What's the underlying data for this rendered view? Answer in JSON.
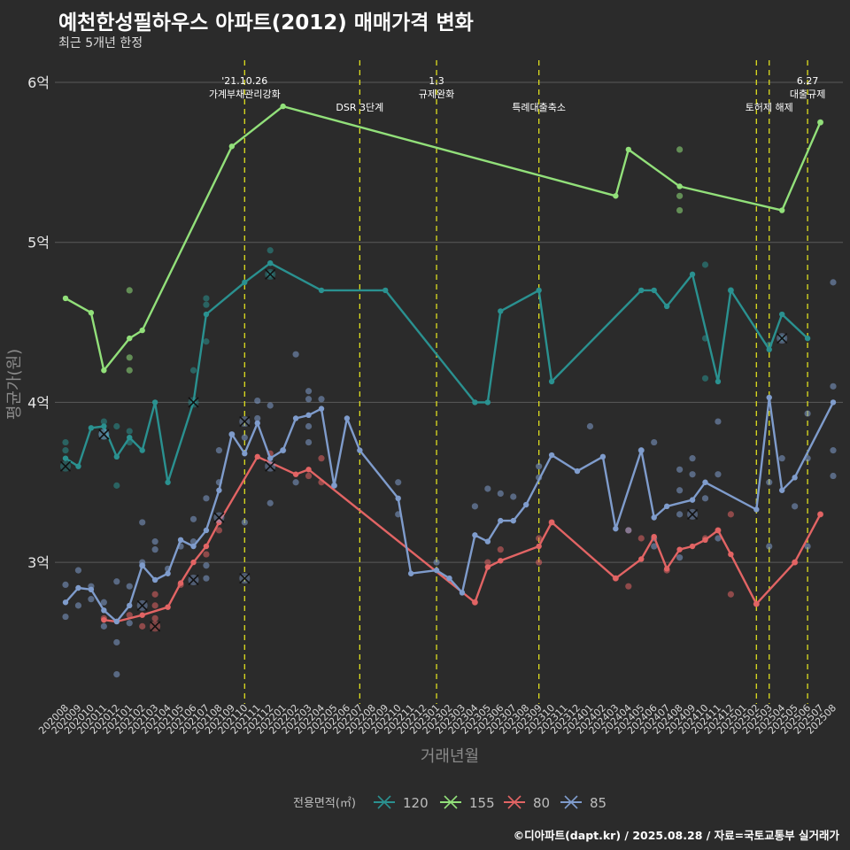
{
  "title": "예천한성필하우스 아파트(2012) 매매가격 변화",
  "subtitle": "최근 5개년 한정",
  "caption": "©디아파트(dapt.kr) / 2025.08.28 / 자료=국토교통부 실거래가",
  "chart_data": {
    "type": "line",
    "xlabel": "거래년월",
    "ylabel": "평균가(원)",
    "x": [
      "202008",
      "202009",
      "202010",
      "202011",
      "202012",
      "202101",
      "202102",
      "202103",
      "202104",
      "202105",
      "202106",
      "202107",
      "202108",
      "202109",
      "202110",
      "202111",
      "202112",
      "202201",
      "202202",
      "202203",
      "202204",
      "202205",
      "202206",
      "202207",
      "202208",
      "202209",
      "202210",
      "202211",
      "202212",
      "202301",
      "202302",
      "202303",
      "202304",
      "202305",
      "202306",
      "202307",
      "202308",
      "202309",
      "202310",
      "202311",
      "202312",
      "202401",
      "202402",
      "202403",
      "202404",
      "202405",
      "202406",
      "202407",
      "202408",
      "202409",
      "202410",
      "202411",
      "202412",
      "202501",
      "202502",
      "202503",
      "202504",
      "202505",
      "202506",
      "202507",
      "202508"
    ],
    "y_ticks": [
      {
        "value": 3.0,
        "label": "3억"
      },
      {
        "value": 4.0,
        "label": "4억"
      },
      {
        "value": 5.0,
        "label": "5억"
      },
      {
        "value": 6.0,
        "label": "6억"
      }
    ],
    "ylim": [
      2.13,
      6.25
    ],
    "grid": true,
    "legend_position": "bottom",
    "legend_title": "전용면적(㎡)",
    "series": [
      {
        "name": "120",
        "color": "#2a9190",
        "points": [
          [
            "202008",
            3.65
          ],
          [
            "202009",
            3.6
          ],
          [
            "202010",
            3.84
          ],
          [
            "202011",
            3.85
          ],
          [
            "202012",
            3.66
          ],
          [
            "202101",
            3.78
          ],
          [
            "202102",
            3.7
          ],
          [
            "202103",
            4.0
          ],
          [
            "202104",
            3.5
          ],
          [
            "202106",
            4.0
          ],
          [
            "202107",
            4.55
          ],
          [
            "202110",
            4.75
          ],
          [
            "202112",
            4.87
          ],
          [
            "202204",
            4.7
          ],
          [
            "202209",
            4.7
          ],
          [
            "202304",
            4.0
          ],
          [
            "202305",
            4.0
          ],
          [
            "202306",
            4.57
          ],
          [
            "202309",
            4.7
          ],
          [
            "202310",
            4.13
          ],
          [
            "202405",
            4.7
          ],
          [
            "202406",
            4.7
          ],
          [
            "202407",
            4.6
          ],
          [
            "202409",
            4.8
          ],
          [
            "202411",
            4.13
          ],
          [
            "202412",
            4.7
          ],
          [
            "202503",
            4.33
          ],
          [
            "202504",
            4.55
          ],
          [
            "202506",
            4.4
          ]
        ],
        "scatter": [
          [
            0,
            3.75
          ],
          [
            0,
            3.7
          ],
          [
            3,
            3.88
          ],
          [
            4,
            3.85
          ],
          [
            4,
            3.48
          ],
          [
            5,
            3.82
          ],
          [
            5,
            3.75
          ],
          [
            10,
            4.2
          ],
          [
            11,
            4.65
          ],
          [
            11,
            4.61
          ],
          [
            11,
            4.38
          ],
          [
            16,
            4.95
          ],
          [
            16,
            4.8
          ],
          [
            50,
            4.86
          ],
          [
            50,
            4.4
          ],
          [
            50,
            4.15
          ],
          [
            52,
            4.7
          ],
          [
            55,
            4.36
          ],
          [
            56,
            4.4
          ]
        ],
        "crosses": [
          [
            0,
            3.6
          ],
          [
            3,
            3.8
          ],
          [
            10,
            4.0
          ],
          [
            16,
            4.8
          ]
        ]
      },
      {
        "name": "155",
        "color": "#92e07a",
        "points": [
          [
            "202008",
            4.65
          ],
          [
            "202010",
            4.56
          ],
          [
            "202011",
            4.2
          ],
          [
            "202101",
            4.4
          ],
          [
            "202102",
            4.45
          ],
          [
            "202109",
            5.6
          ],
          [
            "202201",
            5.85
          ],
          [
            "202403",
            5.29
          ],
          [
            "202404",
            5.58
          ],
          [
            "202408",
            5.35
          ],
          [
            "202504",
            5.2
          ],
          [
            "202507",
            5.75
          ]
        ],
        "scatter": [
          [
            5,
            4.7
          ],
          [
            5,
            4.28
          ],
          [
            5,
            4.2
          ],
          [
            48,
            5.58
          ],
          [
            48,
            5.29
          ],
          [
            48,
            5.2
          ],
          [
            59,
            5.75
          ]
        ],
        "crosses": []
      },
      {
        "name": "80",
        "color": "#e26464",
        "points": [
          [
            "202011",
            2.64
          ],
          [
            "202012",
            2.63
          ],
          [
            "202102",
            2.67
          ],
          [
            "202104",
            2.72
          ],
          [
            "202105",
            2.87
          ],
          [
            "202106",
            3.0
          ],
          [
            "202107",
            3.1
          ],
          [
            "202108",
            3.25
          ],
          [
            "202111",
            3.66
          ],
          [
            "202202",
            3.55
          ],
          [
            "202203",
            3.58
          ],
          [
            "202304",
            2.75
          ],
          [
            "202305",
            2.97
          ],
          [
            "202306",
            3.01
          ],
          [
            "202309",
            3.1
          ],
          [
            "202310",
            3.25
          ],
          [
            "202403",
            2.9
          ],
          [
            "202405",
            3.02
          ],
          [
            "202406",
            3.16
          ],
          [
            "202407",
            2.96
          ],
          [
            "202408",
            3.08
          ],
          [
            "202409",
            3.1
          ],
          [
            "202410",
            3.14
          ],
          [
            "202411",
            3.2
          ],
          [
            "202412",
            3.05
          ],
          [
            "202502",
            2.74
          ],
          [
            "202505",
            3.0
          ],
          [
            "202507",
            3.3
          ]
        ],
        "scatter": [
          [
            3,
            2.65
          ],
          [
            5,
            2.67
          ],
          [
            6,
            2.6
          ],
          [
            7,
            2.65
          ],
          [
            7,
            2.73
          ],
          [
            7,
            2.8
          ],
          [
            9,
            2.86
          ],
          [
            11,
            3.05
          ],
          [
            12,
            3.2
          ],
          [
            16,
            3.68
          ],
          [
            19,
            3.54
          ],
          [
            20,
            3.65
          ],
          [
            20,
            3.5
          ],
          [
            32,
            2.75
          ],
          [
            33,
            3.0
          ],
          [
            34,
            3.08
          ],
          [
            37,
            3.15
          ],
          [
            37,
            3.0
          ],
          [
            38,
            3.25
          ],
          [
            43,
            2.9
          ],
          [
            44,
            3.2
          ],
          [
            44,
            2.85
          ],
          [
            45,
            3.15
          ],
          [
            47,
            2.95
          ],
          [
            50,
            3.15
          ],
          [
            51,
            3.2
          ],
          [
            52,
            3.3
          ],
          [
            52,
            2.8
          ],
          [
            54,
            2.74
          ],
          [
            57,
            3.0
          ],
          [
            59,
            3.3
          ]
        ],
        "crosses": [
          [
            7,
            2.6
          ]
        ]
      },
      {
        "name": "85",
        "color": "#7f9ccc",
        "points": [
          [
            "202008",
            2.75
          ],
          [
            "202009",
            2.84
          ],
          [
            "202010",
            2.83
          ],
          [
            "202011",
            2.7
          ],
          [
            "202012",
            2.63
          ],
          [
            "202101",
            2.73
          ],
          [
            "202102",
            2.98
          ],
          [
            "202103",
            2.89
          ],
          [
            "202104",
            2.93
          ],
          [
            "202105",
            3.14
          ],
          [
            "202106",
            3.1
          ],
          [
            "202107",
            3.2
          ],
          [
            "202108",
            3.45
          ],
          [
            "202109",
            3.8
          ],
          [
            "202110",
            3.68
          ],
          [
            "202111",
            3.87
          ],
          [
            "202112",
            3.65
          ],
          [
            "202201",
            3.7
          ],
          [
            "202202",
            3.9
          ],
          [
            "202203",
            3.92
          ],
          [
            "202204",
            3.96
          ],
          [
            "202205",
            3.48
          ],
          [
            "202206",
            3.9
          ],
          [
            "202207",
            3.7
          ],
          [
            "202210",
            3.4
          ],
          [
            "202211",
            2.93
          ],
          [
            "202301",
            2.95
          ],
          [
            "202302",
            2.9
          ],
          [
            "202303",
            2.81
          ],
          [
            "202304",
            3.17
          ],
          [
            "202305",
            3.13
          ],
          [
            "202306",
            3.26
          ],
          [
            "202307",
            3.26
          ],
          [
            "202308",
            3.36
          ],
          [
            "202310",
            3.67
          ],
          [
            "202312",
            3.57
          ],
          [
            "202402",
            3.66
          ],
          [
            "202403",
            3.21
          ],
          [
            "202405",
            3.7
          ],
          [
            "202406",
            3.28
          ],
          [
            "202407",
            3.35
          ],
          [
            "202409",
            3.39
          ],
          [
            "202410",
            3.5
          ],
          [
            "202502",
            3.33
          ],
          [
            "202503",
            4.03
          ],
          [
            "202504",
            3.45
          ],
          [
            "202505",
            3.53
          ],
          [
            "202508",
            4.0
          ]
        ],
        "scatter": [
          [
            0,
            2.86
          ],
          [
            0,
            2.66
          ],
          [
            1,
            2.95
          ],
          [
            1,
            2.73
          ],
          [
            2,
            2.85
          ],
          [
            2,
            2.77
          ],
          [
            3,
            2.75
          ],
          [
            3,
            2.6
          ],
          [
            4,
            2.88
          ],
          [
            4,
            2.5
          ],
          [
            4,
            2.3
          ],
          [
            5,
            2.85
          ],
          [
            5,
            2.62
          ],
          [
            6,
            3.0
          ],
          [
            6,
            2.98
          ],
          [
            6,
            3.25
          ],
          [
            7,
            3.13
          ],
          [
            7,
            3.08
          ],
          [
            8,
            2.96
          ],
          [
            9,
            3.1
          ],
          [
            10,
            3.27
          ],
          [
            10,
            3.13
          ],
          [
            11,
            2.9
          ],
          [
            11,
            2.98
          ],
          [
            11,
            3.4
          ],
          [
            12,
            3.5
          ],
          [
            12,
            3.7
          ],
          [
            13,
            3.8
          ],
          [
            14,
            3.78
          ],
          [
            14,
            3.25
          ],
          [
            15,
            4.01
          ],
          [
            15,
            3.9
          ],
          [
            16,
            3.98
          ],
          [
            16,
            3.37
          ],
          [
            17,
            3.7
          ],
          [
            18,
            4.3
          ],
          [
            18,
            3.5
          ],
          [
            19,
            4.07
          ],
          [
            19,
            4.02
          ],
          [
            19,
            3.75
          ],
          [
            19,
            3.85
          ],
          [
            20,
            4.02
          ],
          [
            21,
            3.48
          ],
          [
            26,
            3.5
          ],
          [
            26,
            3.3
          ],
          [
            29,
            3.0
          ],
          [
            32,
            3.35
          ],
          [
            33,
            3.46
          ],
          [
            34,
            3.43
          ],
          [
            35,
            3.41
          ],
          [
            37,
            3.53
          ],
          [
            37,
            3.6
          ],
          [
            41,
            3.85
          ],
          [
            44,
            3.2
          ],
          [
            45,
            3.7
          ],
          [
            46,
            3.75
          ],
          [
            46,
            3.15
          ],
          [
            46,
            3.1
          ],
          [
            48,
            3.58
          ],
          [
            48,
            3.45
          ],
          [
            48,
            3.3
          ],
          [
            48,
            3.03
          ],
          [
            49,
            3.65
          ],
          [
            49,
            3.55
          ],
          [
            50,
            3.4
          ],
          [
            51,
            3.88
          ],
          [
            51,
            3.55
          ],
          [
            51,
            3.15
          ],
          [
            55,
            3.5
          ],
          [
            55,
            3.1
          ],
          [
            56,
            3.65
          ],
          [
            57,
            3.35
          ],
          [
            58,
            3.93
          ],
          [
            58,
            3.65
          ],
          [
            58,
            3.1
          ],
          [
            60,
            4.75
          ],
          [
            60,
            4.1
          ],
          [
            60,
            3.54
          ],
          [
            60,
            3.7
          ]
        ],
        "crosses": [
          [
            3,
            3.8
          ],
          [
            6,
            2.73
          ],
          [
            10,
            2.89
          ],
          [
            12,
            3.28
          ],
          [
            14,
            3.88
          ],
          [
            14,
            2.9
          ],
          [
            16,
            3.6
          ],
          [
            49,
            3.3
          ],
          [
            56,
            4.4
          ]
        ]
      }
    ],
    "annotations": [
      {
        "x": "202110",
        "lines": [
          "'21.10.26",
          "가계부채관리강화"
        ]
      },
      {
        "x": "202207",
        "lines": [
          "DSR 3단계"
        ]
      },
      {
        "x": "202301",
        "lines": [
          "1.3",
          "규제완화"
        ]
      },
      {
        "x": "202309",
        "lines": [
          "특례대출축소"
        ]
      },
      {
        "x": "202502",
        "lines": []
      },
      {
        "x": "202503",
        "lines": [
          "토허제 해제"
        ]
      },
      {
        "x": "202506",
        "lines": [
          "6.27",
          "대출규제"
        ]
      }
    ]
  }
}
